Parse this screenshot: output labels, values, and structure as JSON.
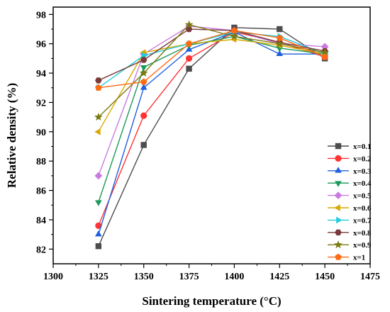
{
  "chart_data": {
    "type": "line",
    "title": "",
    "xlabel": "Sintering temperature (°C)",
    "ylabel": "Relative density (%)",
    "xlim": [
      1300,
      1475
    ],
    "ylim": [
      81,
      98.5
    ],
    "xticks": [
      1300,
      1325,
      1350,
      1375,
      1400,
      1425,
      1450,
      1475
    ],
    "yticks": [
      82,
      84,
      86,
      88,
      90,
      92,
      94,
      96,
      98
    ],
    "grid": false,
    "legend_position": "bottom-right",
    "x": [
      1325,
      1350,
      1375,
      1400,
      1425,
      1450
    ],
    "series": [
      {
        "name": "x=0.1",
        "marker": "square",
        "color": "#4d4d4d",
        "values": [
          82.2,
          89.1,
          94.3,
          97.1,
          97.0,
          95.0
        ]
      },
      {
        "name": "x=0.2",
        "marker": "circle",
        "color": "#ff3333",
        "values": [
          83.6,
          91.1,
          95.0,
          96.8,
          96.1,
          95.1
        ]
      },
      {
        "name": "x=0.3",
        "marker": "triangle-up",
        "color": "#1f5fdc",
        "values": [
          83.0,
          93.0,
          95.6,
          96.8,
          95.3,
          95.3
        ]
      },
      {
        "name": "x=0.4",
        "marker": "triangle-down",
        "color": "#1a9a5a",
        "values": [
          85.2,
          94.4,
          95.9,
          96.5,
          95.7,
          95.3
        ]
      },
      {
        "name": "x=0.5",
        "marker": "diamond",
        "color": "#c97be0",
        "values": [
          87.0,
          95.3,
          97.2,
          96.9,
          96.0,
          95.8
        ]
      },
      {
        "name": "x=0.6",
        "marker": "triangle-left",
        "color": "#d9a800",
        "values": [
          90.0,
          95.4,
          96.0,
          96.3,
          95.9,
          95.3
        ]
      },
      {
        "name": "x=0.7",
        "marker": "triangle-right",
        "color": "#22ccdd",
        "values": [
          93.0,
          95.2,
          96.0,
          96.8,
          96.5,
          95.3
        ]
      },
      {
        "name": "x=0.8",
        "marker": "hexagon",
        "color": "#7b3a3a",
        "values": [
          93.5,
          94.9,
          97.0,
          96.9,
          96.1,
          95.5
        ]
      },
      {
        "name": "x=0.9",
        "marker": "star",
        "color": "#7a7a10",
        "values": [
          91.0,
          94.0,
          97.3,
          96.5,
          96.0,
          95.4
        ]
      },
      {
        "name": "x=1",
        "marker": "pentagon",
        "color": "#ff6a14",
        "values": [
          93.0,
          93.4,
          96.0,
          96.9,
          96.4,
          95.1
        ]
      }
    ]
  }
}
